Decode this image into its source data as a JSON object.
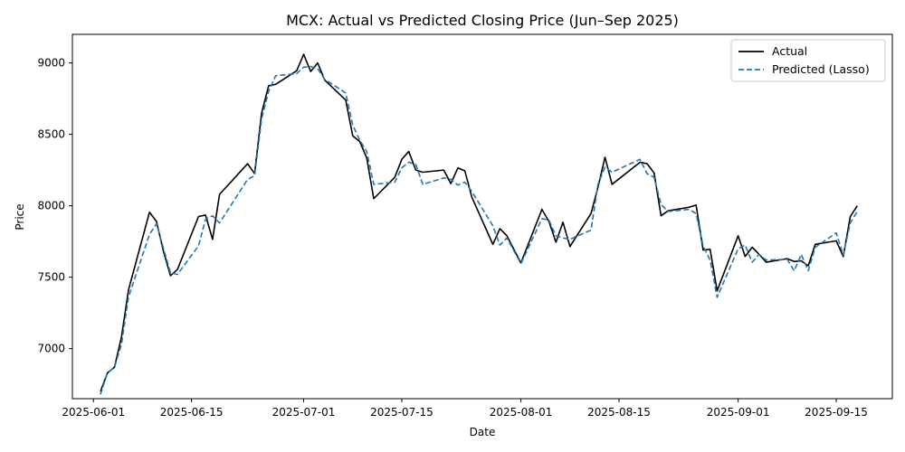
{
  "chart_data": {
    "type": "line",
    "title": "MCX: Actual vs Predicted Closing Price (Jun–Sep 2025)",
    "xlabel": "Date",
    "ylabel": "Price",
    "xlim": [
      "2025-05-29",
      "2025-09-23"
    ],
    "ylim": [
      6650,
      9200
    ],
    "x_ticks": [
      "2025-06-01",
      "2025-06-15",
      "2025-07-01",
      "2025-07-15",
      "2025-08-01",
      "2025-08-15",
      "2025-09-01",
      "2025-09-15"
    ],
    "y_ticks": [
      7000,
      7500,
      8000,
      8500,
      9000
    ],
    "grid": false,
    "legend_position": "top-right",
    "series": [
      {
        "name": "Actual",
        "color": "#000000",
        "style": "solid",
        "points": [
          [
            "2025-06-02",
            6700
          ],
          [
            "2025-06-03",
            6830
          ],
          [
            "2025-06-04",
            6870
          ],
          [
            "2025-06-05",
            7080
          ],
          [
            "2025-06-06",
            7410
          ],
          [
            "2025-06-09",
            7955
          ],
          [
            "2025-06-10",
            7890
          ],
          [
            "2025-06-11",
            7680
          ],
          [
            "2025-06-12",
            7510
          ],
          [
            "2025-06-13",
            7555
          ],
          [
            "2025-06-16",
            7925
          ],
          [
            "2025-06-17",
            7935
          ],
          [
            "2025-06-18",
            7765
          ],
          [
            "2025-06-19",
            8080
          ],
          [
            "2025-06-23",
            8295
          ],
          [
            "2025-06-24",
            8225
          ],
          [
            "2025-06-25",
            8650
          ],
          [
            "2025-06-26",
            8840
          ],
          [
            "2025-06-27",
            8850
          ],
          [
            "2025-06-30",
            8945
          ],
          [
            "2025-07-01",
            9060
          ],
          [
            "2025-07-02",
            8940
          ],
          [
            "2025-07-03",
            9000
          ],
          [
            "2025-07-04",
            8880
          ],
          [
            "2025-07-07",
            8740
          ],
          [
            "2025-07-08",
            8490
          ],
          [
            "2025-07-09",
            8450
          ],
          [
            "2025-07-10",
            8335
          ],
          [
            "2025-07-11",
            8050
          ],
          [
            "2025-07-14",
            8200
          ],
          [
            "2025-07-15",
            8325
          ],
          [
            "2025-07-16",
            8380
          ],
          [
            "2025-07-17",
            8250
          ],
          [
            "2025-07-18",
            8235
          ],
          [
            "2025-07-21",
            8250
          ],
          [
            "2025-07-22",
            8155
          ],
          [
            "2025-07-23",
            8265
          ],
          [
            "2025-07-24",
            8245
          ],
          [
            "2025-07-25",
            8060
          ],
          [
            "2025-07-28",
            7730
          ],
          [
            "2025-07-29",
            7840
          ],
          [
            "2025-07-30",
            7790
          ],
          [
            "2025-08-01",
            7600
          ],
          [
            "2025-08-04",
            7975
          ],
          [
            "2025-08-05",
            7890
          ],
          [
            "2025-08-06",
            7745
          ],
          [
            "2025-08-07",
            7885
          ],
          [
            "2025-08-08",
            7715
          ],
          [
            "2025-08-11",
            7945
          ],
          [
            "2025-08-12",
            8130
          ],
          [
            "2025-08-13",
            8340
          ],
          [
            "2025-08-14",
            8150
          ],
          [
            "2025-08-18",
            8305
          ],
          [
            "2025-08-19",
            8295
          ],
          [
            "2025-08-20",
            8230
          ],
          [
            "2025-08-21",
            7930
          ],
          [
            "2025-08-22",
            7965
          ],
          [
            "2025-08-25",
            7990
          ],
          [
            "2025-08-26",
            8005
          ],
          [
            "2025-08-27",
            7690
          ],
          [
            "2025-08-28",
            7695
          ],
          [
            "2025-08-29",
            7405
          ],
          [
            "2025-09-01",
            7790
          ],
          [
            "2025-09-02",
            7645
          ],
          [
            "2025-09-03",
            7710
          ],
          [
            "2025-09-04",
            7660
          ],
          [
            "2025-09-05",
            7605
          ],
          [
            "2025-09-08",
            7630
          ],
          [
            "2025-09-09",
            7610
          ],
          [
            "2025-09-10",
            7615
          ],
          [
            "2025-09-11",
            7580
          ],
          [
            "2025-09-12",
            7730
          ],
          [
            "2025-09-15",
            7755
          ],
          [
            "2025-09-16",
            7645
          ],
          [
            "2025-09-17",
            7925
          ],
          [
            "2025-09-18",
            8000
          ]
        ]
      },
      {
        "name": "Predicted (Lasso)",
        "color": "#1f77b4",
        "style": "dashed",
        "points": [
          [
            "2025-06-02",
            6680
          ],
          [
            "2025-06-03",
            6830
          ],
          [
            "2025-06-04",
            6870
          ],
          [
            "2025-06-05",
            7030
          ],
          [
            "2025-06-06",
            7360
          ],
          [
            "2025-06-09",
            7800
          ],
          [
            "2025-06-10",
            7875
          ],
          [
            "2025-06-11",
            7700
          ],
          [
            "2025-06-12",
            7530
          ],
          [
            "2025-06-13",
            7520
          ],
          [
            "2025-06-16",
            7720
          ],
          [
            "2025-06-17",
            7905
          ],
          [
            "2025-06-18",
            7930
          ],
          [
            "2025-06-19",
            7880
          ],
          [
            "2025-06-23",
            8185
          ],
          [
            "2025-06-24",
            8210
          ],
          [
            "2025-06-25",
            8610
          ],
          [
            "2025-06-26",
            8800
          ],
          [
            "2025-06-27",
            8910
          ],
          [
            "2025-06-30",
            8925
          ],
          [
            "2025-07-01",
            8970
          ],
          [
            "2025-07-02",
            8975
          ],
          [
            "2025-07-03",
            8960
          ],
          [
            "2025-07-04",
            8885
          ],
          [
            "2025-07-07",
            8790
          ],
          [
            "2025-07-08",
            8565
          ],
          [
            "2025-07-09",
            8460
          ],
          [
            "2025-07-10",
            8380
          ],
          [
            "2025-07-11",
            8150
          ],
          [
            "2025-07-14",
            8165
          ],
          [
            "2025-07-15",
            8265
          ],
          [
            "2025-07-16",
            8305
          ],
          [
            "2025-07-17",
            8290
          ],
          [
            "2025-07-18",
            8150
          ],
          [
            "2025-07-21",
            8195
          ],
          [
            "2025-07-22",
            8185
          ],
          [
            "2025-07-23",
            8145
          ],
          [
            "2025-07-24",
            8165
          ],
          [
            "2025-07-25",
            8100
          ],
          [
            "2025-07-28",
            7860
          ],
          [
            "2025-07-29",
            7725
          ],
          [
            "2025-07-30",
            7775
          ],
          [
            "2025-08-01",
            7595
          ],
          [
            "2025-08-04",
            7910
          ],
          [
            "2025-08-05",
            7900
          ],
          [
            "2025-08-06",
            7790
          ],
          [
            "2025-08-07",
            7775
          ],
          [
            "2025-08-08",
            7765
          ],
          [
            "2025-08-11",
            7830
          ],
          [
            "2025-08-12",
            8150
          ],
          [
            "2025-08-13",
            8270
          ],
          [
            "2025-08-14",
            8235
          ],
          [
            "2025-08-18",
            8325
          ],
          [
            "2025-08-19",
            8225
          ],
          [
            "2025-08-20",
            8200
          ],
          [
            "2025-08-21",
            8010
          ],
          [
            "2025-08-22",
            7960
          ],
          [
            "2025-08-25",
            7975
          ],
          [
            "2025-08-26",
            7945
          ],
          [
            "2025-08-27",
            7720
          ],
          [
            "2025-08-28",
            7620
          ],
          [
            "2025-08-29",
            7360
          ],
          [
            "2025-09-01",
            7700
          ],
          [
            "2025-09-02",
            7725
          ],
          [
            "2025-09-03",
            7605
          ],
          [
            "2025-09-04",
            7660
          ],
          [
            "2025-09-05",
            7620
          ],
          [
            "2025-09-08",
            7625
          ],
          [
            "2025-09-09",
            7545
          ],
          [
            "2025-09-10",
            7660
          ],
          [
            "2025-09-11",
            7545
          ],
          [
            "2025-09-12",
            7710
          ],
          [
            "2025-09-15",
            7810
          ],
          [
            "2025-09-16",
            7655
          ],
          [
            "2025-09-17",
            7880
          ],
          [
            "2025-09-18",
            7960
          ]
        ]
      }
    ]
  }
}
